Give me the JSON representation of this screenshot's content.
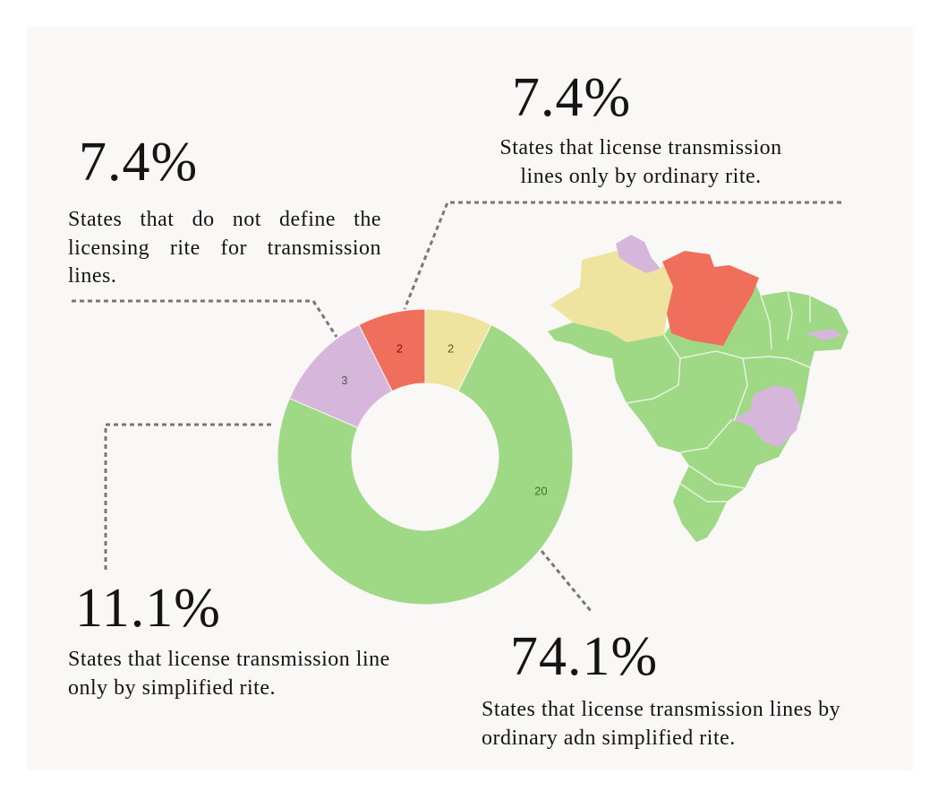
{
  "chart_data": {
    "type": "pie",
    "variant": "donut",
    "categories": [
      "States that license transmission lines only by ordinary rite.",
      "States that license transmission lines by ordinary adn simplified rite.",
      "States that license transmission line only by simplified rite.",
      "States that do not define the licensing rite for transmission lines."
    ],
    "values": [
      2,
      20,
      3,
      2
    ],
    "slice_labels": [
      "2",
      "20",
      "3",
      "2"
    ],
    "percentages": [
      "7.4%",
      "74.1%",
      "11.1%",
      "7.4%"
    ],
    "colors": [
      "#efe3a0",
      "#9fd986",
      "#d7b6dc",
      "#f06e5c"
    ],
    "label_colors": [
      "#6a5a1c",
      "#2e7d32",
      "#555555",
      "#6a1b12"
    ]
  },
  "annotations": {
    "ordinary": {
      "pct": "7.4%",
      "text": "States that license transmission lines only by ordinary rite."
    },
    "undefined": {
      "pct": "7.4%",
      "text": "States that do not define the licensing rite for transmission lines."
    },
    "simplified": {
      "pct": "11.1%",
      "text": "States that license transmission line only by simplified rite."
    },
    "both": {
      "pct": "74.1%",
      "text": "States that license transmission lines by ordinary adn simplified rite."
    }
  },
  "map": {
    "colors": {
      "both": "#9fd986",
      "ordinary": "#efe3a0",
      "undefined": "#f06e5c",
      "simplified": "#d7b6dc",
      "borders": "#e6f3df"
    }
  }
}
